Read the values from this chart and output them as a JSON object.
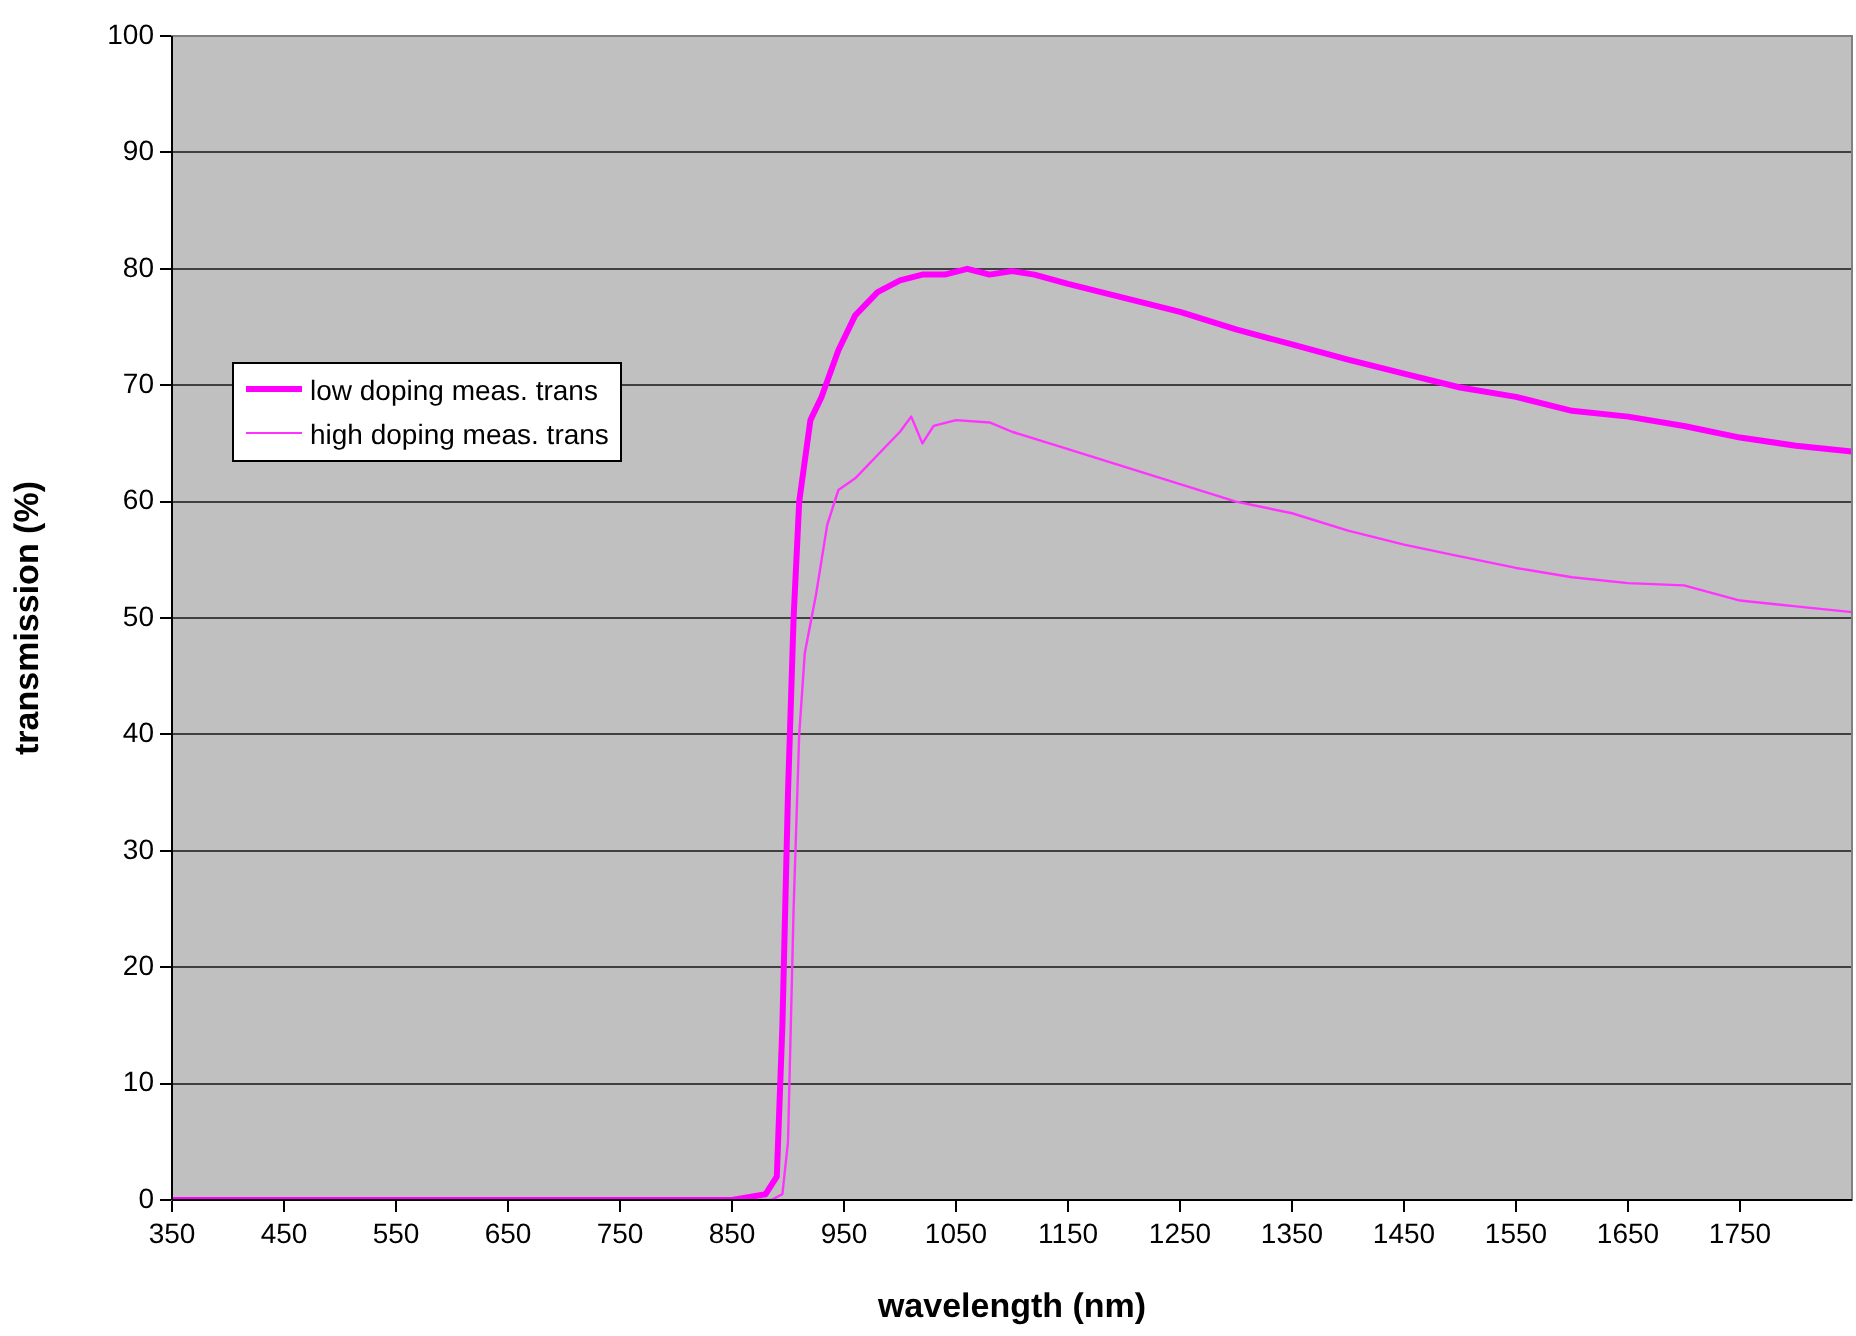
{
  "chart_data": {
    "type": "line",
    "xlabel": "wavelength (nm)",
    "ylabel": "transmission (%)",
    "xlim": [
      350,
      1850
    ],
    "xticks": [
      350,
      450,
      550,
      650,
      750,
      850,
      950,
      1050,
      1150,
      1250,
      1350,
      1450,
      1550,
      1650,
      1750
    ],
    "ylim": [
      0,
      100
    ],
    "yticks": [
      0,
      10,
      20,
      30,
      40,
      50,
      60,
      70,
      80,
      90,
      100
    ],
    "grid": "y",
    "legend": "left",
    "marker": "none",
    "line_style": "solid",
    "series": [
      {
        "name": "low doping meas. trans",
        "color": "#ff00ff",
        "x": [
          350,
          500,
          700,
          850,
          880,
          890,
          895,
          900,
          905,
          910,
          920,
          930,
          945,
          960,
          980,
          1000,
          1020,
          1040,
          1060,
          1080,
          1100,
          1120,
          1150,
          1200,
          1250,
          1300,
          1350,
          1400,
          1450,
          1500,
          1550,
          1600,
          1650,
          1700,
          1750,
          1800,
          1850
        ],
        "values": [
          0,
          0,
          0,
          0,
          0.5,
          2,
          15,
          35,
          50,
          60,
          67,
          69,
          73,
          76,
          78,
          79,
          79.5,
          79.5,
          80,
          79.5,
          79.8,
          79.5,
          78.7,
          77.5,
          76.3,
          74.8,
          73.5,
          72.2,
          71,
          69.8,
          69,
          67.8,
          67.3,
          66.5,
          65.5,
          64.8,
          64.3
        ]
      },
      {
        "name": "high doping meas. trans",
        "color": "#ff33ff",
        "x": [
          350,
          500,
          700,
          850,
          885,
          895,
          900,
          905,
          910,
          915,
          925,
          935,
          945,
          960,
          980,
          1000,
          1010,
          1020,
          1030,
          1050,
          1080,
          1100,
          1150,
          1200,
          1250,
          1300,
          1350,
          1400,
          1450,
          1500,
          1550,
          1600,
          1650,
          1700,
          1750,
          1800,
          1850
        ],
        "values": [
          0,
          0,
          0,
          0,
          0,
          0.5,
          5,
          25,
          40,
          47,
          52,
          58,
          61,
          62,
          64,
          66,
          67.3,
          65,
          66.5,
          67,
          66.8,
          66,
          64.5,
          63,
          61.5,
          60,
          59,
          57.5,
          56.3,
          55.3,
          54.3,
          53.5,
          53,
          52.8,
          51.5,
          51,
          50.5
        ]
      }
    ]
  }
}
